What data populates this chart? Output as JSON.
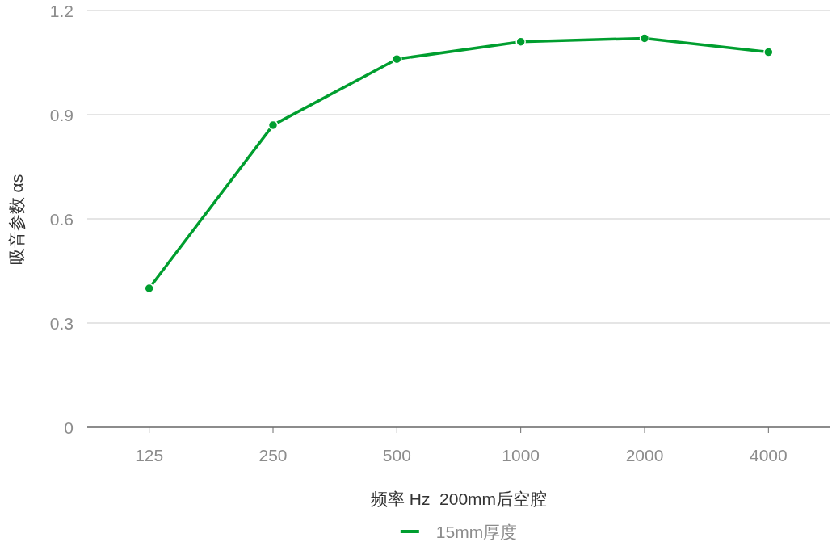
{
  "chart_data": {
    "type": "line",
    "xlabel": "频率 Hz  200mm后空腔",
    "ylabel": "吸音参数 αs",
    "categories": [
      "125",
      "250",
      "500",
      "1000",
      "2000",
      "4000"
    ],
    "series": [
      {
        "name": "15mm厚度",
        "color": "#009e2f",
        "values": [
          0.4,
          0.87,
          1.06,
          1.11,
          1.12,
          1.08
        ]
      }
    ],
    "ylim": [
      0,
      1.2
    ],
    "yticks": [
      0,
      0.3,
      0.6,
      0.9,
      1.2
    ],
    "grid": "y",
    "legend": "bottom",
    "marker": "circle",
    "line_style": "solid"
  }
}
